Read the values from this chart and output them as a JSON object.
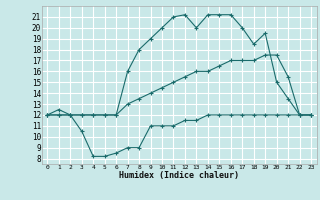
{
  "xlabel": "Humidex (Indice chaleur)",
  "background_color": "#c9e8e8",
  "grid_color": "#ffffff",
  "line_color": "#1a6b6b",
  "xlim": [
    -0.5,
    23.5
  ],
  "ylim": [
    7.5,
    22
  ],
  "xticks": [
    0,
    1,
    2,
    3,
    4,
    5,
    6,
    7,
    8,
    9,
    10,
    11,
    12,
    13,
    14,
    15,
    16,
    17,
    18,
    19,
    20,
    21,
    22,
    23
  ],
  "yticks": [
    8,
    9,
    10,
    11,
    12,
    13,
    14,
    15,
    16,
    17,
    18,
    19,
    20,
    21
  ],
  "line_max": {
    "x": [
      0,
      1,
      2,
      3,
      4,
      5,
      6,
      7,
      8,
      9,
      10,
      11,
      12,
      13,
      14,
      15,
      16,
      17,
      18,
      19,
      20,
      21,
      22,
      23
    ],
    "y": [
      12.0,
      12.5,
      12.0,
      12.0,
      12.0,
      12.0,
      12.0,
      16.0,
      18.0,
      19.0,
      20.0,
      21.0,
      21.2,
      20.0,
      21.2,
      21.2,
      21.2,
      20.0,
      18.5,
      19.5,
      15.0,
      13.5,
      12.0,
      12.0
    ]
  },
  "line_avg": {
    "x": [
      0,
      1,
      2,
      3,
      4,
      5,
      6,
      7,
      8,
      9,
      10,
      11,
      12,
      13,
      14,
      15,
      16,
      17,
      18,
      19,
      20,
      21,
      22,
      23
    ],
    "y": [
      12.0,
      12.0,
      12.0,
      12.0,
      12.0,
      12.0,
      12.0,
      13.0,
      13.5,
      14.0,
      14.5,
      15.0,
      15.5,
      16.0,
      16.0,
      16.5,
      17.0,
      17.0,
      17.0,
      17.5,
      17.5,
      15.5,
      12.0,
      12.0
    ]
  },
  "line_min": {
    "x": [
      0,
      1,
      2,
      3,
      4,
      5,
      6,
      7,
      8,
      9,
      10,
      11,
      12,
      13,
      14,
      15,
      16,
      17,
      18,
      19,
      20,
      21,
      22,
      23
    ],
    "y": [
      12.0,
      12.0,
      12.0,
      10.5,
      8.2,
      8.2,
      8.5,
      9.0,
      9.0,
      11.0,
      11.0,
      11.0,
      11.5,
      11.5,
      12.0,
      12.0,
      12.0,
      12.0,
      12.0,
      12.0,
      12.0,
      12.0,
      12.0,
      12.0
    ]
  }
}
